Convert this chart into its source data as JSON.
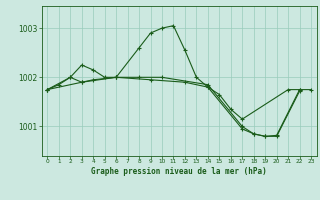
{
  "background_color": "#cce8e0",
  "grid_color": "#99ccbb",
  "line_color": "#1a5c1a",
  "title": "Graphe pression niveau de la mer (hPa)",
  "xlim": [
    -0.5,
    23.5
  ],
  "ylim": [
    1000.4,
    1003.45
  ],
  "yticks": [
    1001,
    1002,
    1003
  ],
  "xticks": [
    0,
    1,
    2,
    3,
    4,
    5,
    6,
    7,
    8,
    9,
    10,
    11,
    12,
    13,
    14,
    15,
    16,
    17,
    18,
    19,
    20,
    21,
    22,
    23
  ],
  "line1": {
    "x": [
      0,
      1,
      2,
      3,
      4,
      5,
      6,
      8,
      9,
      10,
      11,
      12,
      13,
      14,
      15,
      16,
      17,
      21,
      22,
      23
    ],
    "y": [
      1001.75,
      1001.85,
      1002.0,
      1002.25,
      1002.15,
      1002.0,
      1002.0,
      1002.6,
      1002.9,
      1003.0,
      1003.05,
      1002.55,
      1002.0,
      1001.8,
      1001.65,
      1001.35,
      1001.15,
      1001.75,
      1001.75,
      1001.75
    ]
  },
  "line2": {
    "x": [
      0,
      2,
      3,
      4,
      6,
      8,
      10,
      14,
      17,
      18,
      19,
      20,
      22
    ],
    "y": [
      1001.75,
      1002.0,
      1001.9,
      1001.95,
      1002.0,
      1002.0,
      1002.0,
      1001.85,
      1001.0,
      1000.85,
      1000.8,
      1000.8,
      1001.72
    ]
  },
  "line3": {
    "x": [
      0,
      3,
      6,
      9,
      12,
      14,
      17,
      18,
      19,
      20,
      22
    ],
    "y": [
      1001.75,
      1001.9,
      1002.0,
      1001.95,
      1001.9,
      1001.8,
      1000.95,
      1000.85,
      1000.8,
      1000.82,
      1001.75
    ]
  }
}
